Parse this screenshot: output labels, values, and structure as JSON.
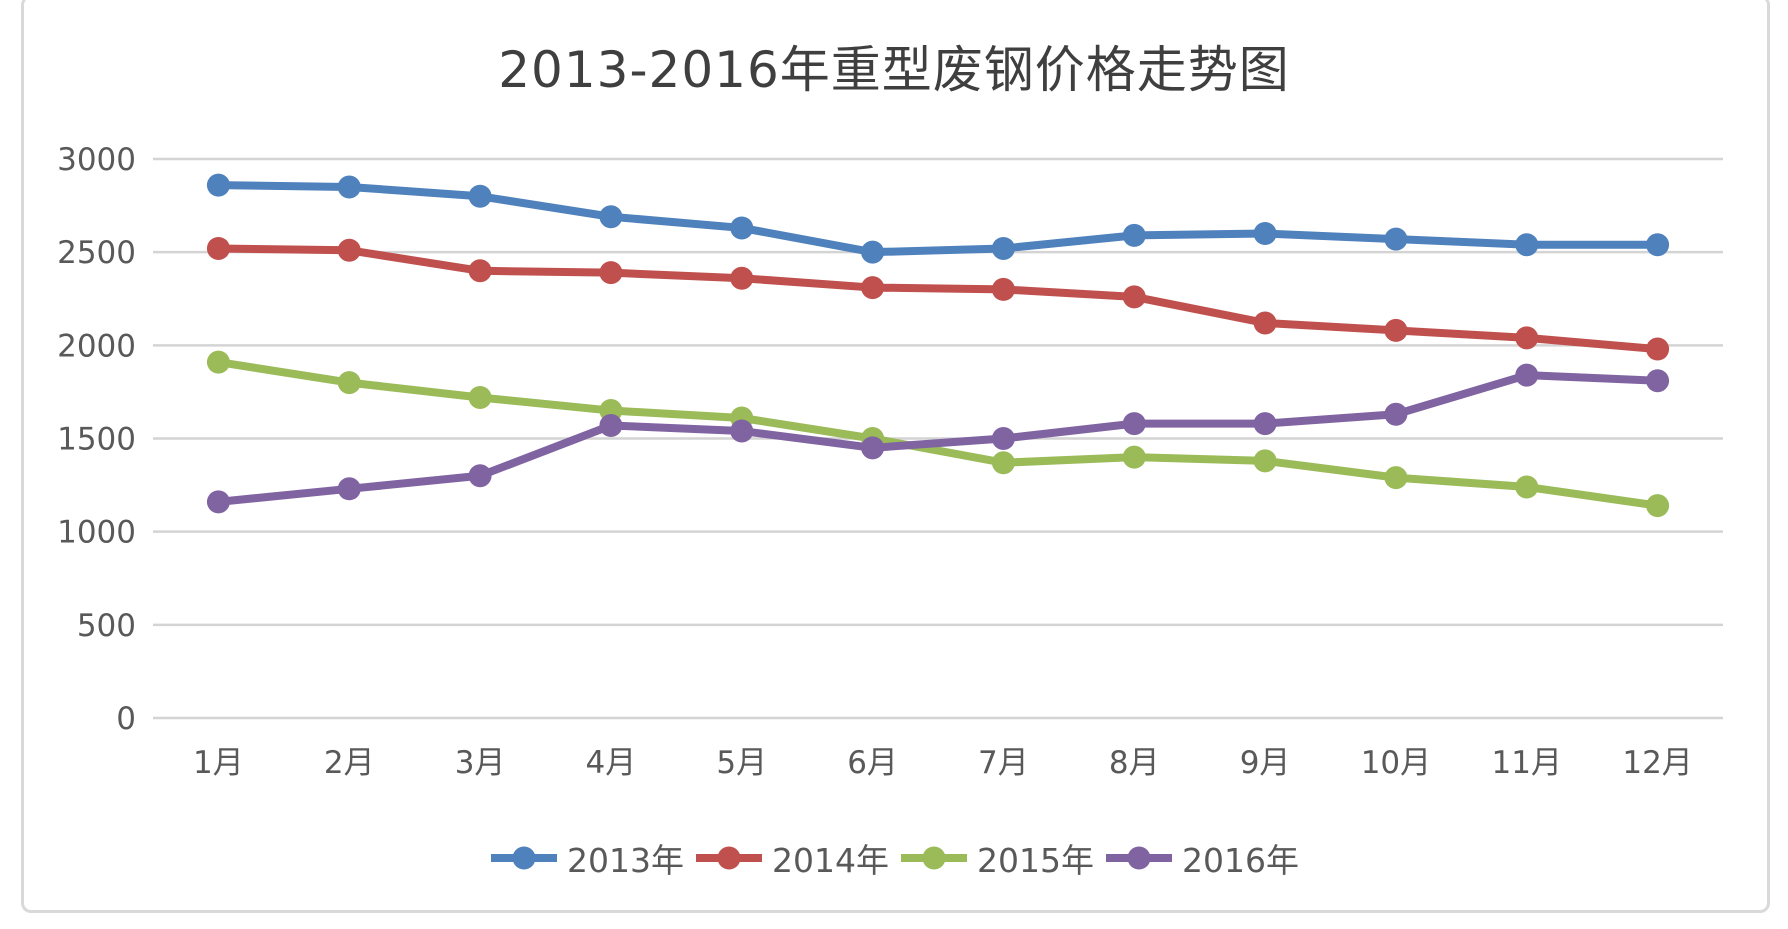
{
  "chart_data": {
    "type": "line",
    "title": "2013-2016年重型废钢价格走势图",
    "categories": [
      "1月",
      "2月",
      "3月",
      "4月",
      "5月",
      "6月",
      "7月",
      "8月",
      "9月",
      "10月",
      "11月",
      "12月"
    ],
    "series": [
      {
        "name": "2013年",
        "color": "#4F81BD",
        "values": [
          2860,
          2850,
          2800,
          2690,
          2630,
          2500,
          2520,
          2590,
          2600,
          2570,
          2540,
          2540
        ]
      },
      {
        "name": "2014年",
        "color": "#C0504D",
        "values": [
          2520,
          2510,
          2400,
          2390,
          2360,
          2310,
          2300,
          2260,
          2120,
          2080,
          2040,
          1980
        ]
      },
      {
        "name": "2015年",
        "color": "#9BBB59",
        "values": [
          1910,
          1800,
          1720,
          1650,
          1610,
          1500,
          1370,
          1400,
          1380,
          1290,
          1240,
          1140
        ]
      },
      {
        "name": "2016年",
        "color": "#8064A2",
        "values": [
          1160,
          1230,
          1300,
          1570,
          1540,
          1450,
          1500,
          1580,
          1580,
          1630,
          1840,
          1810
        ]
      }
    ],
    "y_ticks": [
      0,
      500,
      1000,
      1500,
      2000,
      2500,
      3000
    ],
    "ylim": [
      0,
      3000
    ],
    "grid": "horizontal",
    "legend_position": "bottom",
    "gridline_color": "#d4d4d4",
    "axis_label_color": "#595959",
    "frame_color": "#d9d9d9"
  }
}
